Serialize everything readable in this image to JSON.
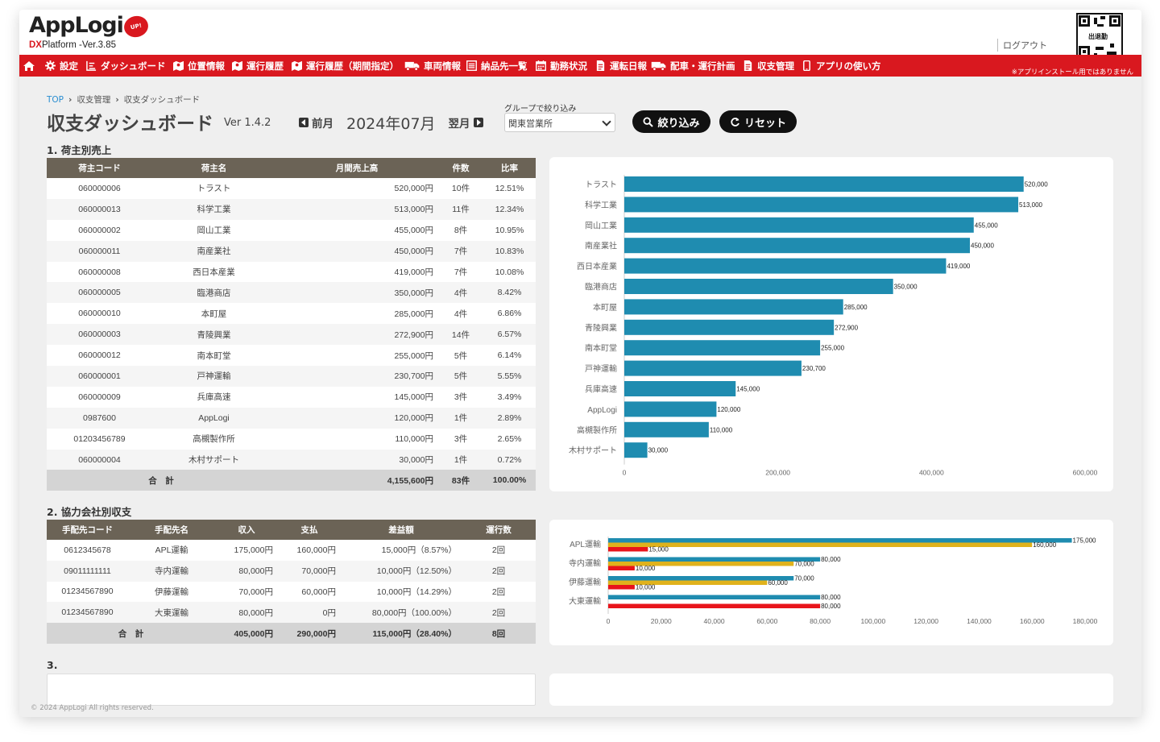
{
  "header": {
    "logo_text": "AppLogi",
    "logo_badge": "UP!",
    "version_brand": "DX",
    "version_text": "Platform -Ver.3.85",
    "logout": "ログアウト",
    "qr_label": "出退勤",
    "install_note": "※アプリインストール用ではありません"
  },
  "nav": {
    "home_icon": "home-icon",
    "items": [
      {
        "label": "設定",
        "icon": "gear-icon"
      },
      {
        "label": "ダッシュボード",
        "icon": "dashboard-icon"
      },
      {
        "label": "位置情報",
        "icon": "map-icon"
      },
      {
        "label": "運行履歴",
        "icon": "map-icon"
      },
      {
        "label": "運行履歴（期間指定）",
        "icon": "map-icon"
      },
      {
        "label": "車両情報",
        "icon": "truck-icon"
      },
      {
        "label": "納品先一覧",
        "icon": "list-icon"
      },
      {
        "label": "勤務状況",
        "icon": "calendar-icon"
      },
      {
        "label": "運転日報",
        "icon": "document-icon"
      },
      {
        "label": "配車・運行計画",
        "icon": "truck-icon"
      },
      {
        "label": "収支管理",
        "icon": "document-icon"
      },
      {
        "label": "アプリの使い方",
        "icon": "phone-icon"
      }
    ]
  },
  "breadcrumb": {
    "top": "TOP",
    "mid": "収支管理",
    "current": "収支ダッシュボード"
  },
  "page": {
    "title": "収支ダッシュボード",
    "version": "Ver 1.4.2",
    "prev": "前月",
    "month": "2024年07月",
    "next": "翌月",
    "group_label": "グループで絞り込み",
    "group_value": "関東営業所",
    "filter_button": "絞り込み",
    "reset_button": "リセット"
  },
  "section1": {
    "title": "1. 荷主別売上",
    "headers": [
      "荷主コード",
      "荷主名",
      "月間売上高",
      "件数",
      "比率"
    ],
    "rows": [
      [
        "060000006",
        "トラスト",
        "520,000円",
        "10件",
        "12.51%"
      ],
      [
        "060000013",
        "科学工業",
        "513,000円",
        "11件",
        "12.34%"
      ],
      [
        "060000002",
        "岡山工業",
        "455,000円",
        "8件",
        "10.95%"
      ],
      [
        "060000011",
        "南産業社",
        "450,000円",
        "7件",
        "10.83%"
      ],
      [
        "060000008",
        "西日本産業",
        "419,000円",
        "7件",
        "10.08%"
      ],
      [
        "060000005",
        "臨港商店",
        "350,000円",
        "4件",
        "8.42%"
      ],
      [
        "060000010",
        "本町屋",
        "285,000円",
        "4件",
        "6.86%"
      ],
      [
        "060000003",
        "青陵興業",
        "272,900円",
        "14件",
        "6.57%"
      ],
      [
        "060000012",
        "南本町堂",
        "255,000円",
        "5件",
        "6.14%"
      ],
      [
        "060000001",
        "戸神運輸",
        "230,700円",
        "5件",
        "5.55%"
      ],
      [
        "060000009",
        "兵庫高速",
        "145,000円",
        "3件",
        "3.49%"
      ],
      [
        "0987600",
        "AppLogi",
        "120,000円",
        "1件",
        "2.89%"
      ],
      [
        "01203456789",
        "高槻製作所",
        "110,000円",
        "3件",
        "2.65%"
      ],
      [
        "060000004",
        "木村サポート",
        "30,000円",
        "1件",
        "0.72%"
      ]
    ],
    "total": [
      "合　計",
      "4,155,600円",
      "83件",
      "100.00%"
    ]
  },
  "section2": {
    "title": "2. 協力会社別収支",
    "headers": [
      "手配先コード",
      "手配先名",
      "収入",
      "支払",
      "差益額",
      "運行数"
    ],
    "rows": [
      [
        "0612345678",
        "APL運輸",
        "175,000円",
        "160,000円",
        "15,000円（8.57%）",
        "2回"
      ],
      [
        "09011111111",
        "寺内運輸",
        "80,000円",
        "70,000円",
        "10,000円（12.50%）",
        "2回"
      ],
      [
        "01234567890",
        "伊藤運輸",
        "70,000円",
        "60,000円",
        "10,000円（14.29%）",
        "2回"
      ],
      [
        "01234567890",
        "大東運輸",
        "80,000円",
        "0円",
        "80,000円（100.00%）",
        "2回"
      ]
    ],
    "total": [
      "合　計",
      "405,000円",
      "290,000円",
      "115,000円（28.40%）",
      "8回"
    ]
  },
  "section3": {
    "title": "3."
  },
  "footer": "© 2024 AppLogi All rights reserved.",
  "colors": {
    "brand_red": "#d9181f",
    "bar_blue": "#1f8cb0",
    "bar_gold": "#e0b21c",
    "bar_red": "#e8141b",
    "header_brown": "#6b6356"
  },
  "chart_data": [
    {
      "type": "bar",
      "orientation": "horizontal",
      "categories": [
        "トラスト",
        "科学工業",
        "岡山工業",
        "南産業社",
        "西日本産業",
        "臨港商店",
        "本町屋",
        "青陵興業",
        "南本町堂",
        "戸神運輸",
        "兵庫高速",
        "AppLogi",
        "高槻製作所",
        "木村サポート"
      ],
      "values": [
        520000,
        513000,
        455000,
        450000,
        419000,
        350000,
        285000,
        272900,
        255000,
        230700,
        145000,
        120000,
        110000,
        30000
      ],
      "value_labels": [
        "520,000",
        "513,000",
        "455,000",
        "450,000",
        "419,000",
        "350,000",
        "285,000",
        "272,900",
        "255,000",
        "230,700",
        "145,000",
        "120,000",
        "110,000",
        "30,000"
      ],
      "xlim": [
        0,
        600000
      ],
      "xticks": [
        "0",
        "200,000",
        "400,000",
        "600,000"
      ],
      "title": "",
      "xlabel": "",
      "ylabel": ""
    },
    {
      "type": "bar",
      "orientation": "horizontal",
      "categories": [
        "APL運輸",
        "寺内運輸",
        "伊藤運輸",
        "大東運輸"
      ],
      "series": [
        {
          "values": [
            175000,
            80000,
            70000,
            80000
          ],
          "labels": [
            "175,000",
            "80,000",
            "70,000",
            "80,000"
          ]
        },
        {
          "values": [
            160000,
            70000,
            60000,
            0
          ],
          "labels": [
            "160,000",
            "70,000",
            "60,000",
            ""
          ]
        },
        {
          "values": [
            15000,
            10000,
            10000,
            80000
          ],
          "labels": [
            "15,000",
            "10,000",
            "10,000",
            "80,000"
          ]
        }
      ],
      "xlim": [
        0,
        180000
      ],
      "xticks": [
        "0",
        "20,000",
        "40,000",
        "60,000",
        "80,000",
        "100,000",
        "120,000",
        "140,000",
        "160,000",
        "180,000"
      ],
      "title": "",
      "xlabel": "",
      "ylabel": ""
    }
  ]
}
